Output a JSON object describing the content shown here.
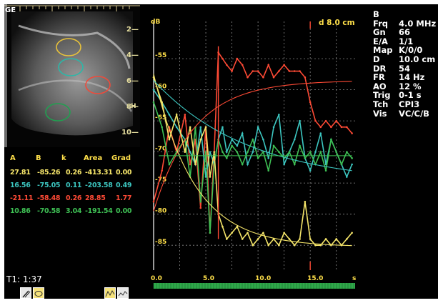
{
  "ultrasound": {
    "corner_label": "GE",
    "depth_ticks": [
      "2",
      "4",
      "6",
      "8",
      "10"
    ],
    "side_marker": "H",
    "roi_colors": [
      "#e8c23a",
      "#2bb7a8",
      "#f04a3a",
      "#20a050"
    ]
  },
  "results_table": {
    "headers": [
      "A",
      "B",
      "k",
      "Area",
      "Grad"
    ],
    "rows": [
      {
        "color": "#f6e66a",
        "A": "27.81",
        "B": "-85.26",
        "k": "0.26",
        "Area": "-413.31",
        "Grad": "0.00"
      },
      {
        "color": "#3cc6c0",
        "A": "16.56",
        "B": "-75.05",
        "k": "0.11",
        "Area": "-203.58",
        "Grad": "0.49"
      },
      {
        "color": "#ff4a35",
        "A": "-21.11",
        "B": "-58.48",
        "k": "0.26",
        "Area": "28.85",
        "Grad": "1.77"
      },
      {
        "color": "#3ec054",
        "A": "10.86",
        "B": "-70.58",
        "k": "3.04",
        "Area": "-191.54",
        "Grad": "0.00"
      }
    ]
  },
  "timer": "T1: 1:37",
  "toolbar": {
    "icons": [
      "pen-edit-icon",
      "ellipse-roi-icon",
      "curve-fit-icon",
      "raw-curve-icon"
    ]
  },
  "info_panel": [
    {
      "label": "B",
      "value": ""
    },
    {
      "label": "Frq",
      "value": "4.0 MHz"
    },
    {
      "label": "Gn",
      "value": "66"
    },
    {
      "label": "E/A",
      "value": "1/1"
    },
    {
      "label": "Map",
      "value": "K/0/0"
    },
    {
      "label": "D",
      "value": "10.0 cm"
    },
    {
      "label": "DR",
      "value": "54"
    },
    {
      "label": "FR",
      "value": "14 Hz"
    },
    {
      "label": "AO",
      "value": "12 %"
    },
    {
      "label": "Trig",
      "value": "0-1 s"
    },
    {
      "label": "Tch",
      "value": "CPI3"
    },
    {
      "label": "Vis",
      "value": "VC/C/B"
    }
  ],
  "chart_data": {
    "type": "line",
    "ylabel": "dB",
    "xlabel": "s",
    "depth_marker": "d 8.0 cm",
    "x_ticks": [
      "0.0",
      "5.0",
      "10.0",
      "15.0"
    ],
    "y_ticks": [
      "-55",
      "-60",
      "-65",
      "-70",
      "-75",
      "-80",
      "-85"
    ],
    "xlim": [
      0,
      19.3
    ],
    "ylim": [
      -89,
      -52
    ],
    "grid": true,
    "series": [
      {
        "color": "#ff4a35",
        "x": [
          0.0,
          0.8,
          1.5,
          2.2,
          3.0,
          3.5,
          4.0,
          4.5,
          5.0,
          5.4,
          5.8,
          6.2,
          6.6,
          7.0,
          7.5,
          8.0,
          8.5,
          9.0,
          9.5,
          10.0,
          10.5,
          11.0,
          11.5,
          12.0,
          12.5,
          13.0,
          13.5,
          14.0,
          14.5,
          15.0,
          15.5,
          16.0,
          16.5,
          17.0,
          17.5,
          18.0,
          18.5,
          19.0
        ],
        "y": [
          -78,
          -73,
          -66,
          -70,
          -64,
          -72,
          -68,
          -79,
          -66,
          -83,
          -70,
          -54,
          -55,
          -56,
          -57,
          -55,
          -56,
          -58,
          -57,
          -57,
          -58,
          -56,
          -58,
          -57,
          -56,
          -57,
          -57,
          -57,
          -58,
          -62,
          -65,
          -66,
          -65,
          -66,
          -65,
          -66,
          -66,
          -67
        ],
        "fit": [
          0,
          0,
          0,
          0,
          0,
          0,
          0,
          0,
          0,
          0,
          0,
          0,
          0,
          0,
          0,
          0,
          0,
          0,
          0,
          0,
          0,
          0,
          0,
          0,
          0,
          0,
          0,
          0,
          0,
          0,
          0,
          0,
          0,
          0,
          0,
          0,
          0,
          0
        ]
      },
      {
        "color": "#3cc6c0",
        "x": [
          0.0,
          0.8,
          1.5,
          2.2,
          3.0,
          3.5,
          4.0,
          4.5,
          5.0,
          5.4,
          5.8,
          6.2,
          6.6,
          7.0,
          7.5,
          8.0,
          8.5,
          9.0,
          9.5,
          10.0,
          10.5,
          11.0,
          11.5,
          12.0,
          12.5,
          13.0,
          13.5,
          14.0,
          14.5,
          15.0,
          15.5,
          16.0,
          16.5,
          17.0,
          17.5,
          18.0,
          18.5,
          19.0
        ],
        "y": [
          -60,
          -62,
          -64,
          -66,
          -68,
          -70,
          -72,
          -66,
          -74,
          -70,
          -72,
          -68,
          -66,
          -70,
          -68,
          -69,
          -67,
          -72,
          -70,
          -66,
          -68,
          -71,
          -66,
          -64,
          -72,
          -70,
          -68,
          -65,
          -71,
          -73,
          -70,
          -67,
          -72,
          -68,
          -70,
          -72,
          -74,
          -72
        ],
        "fit": []
      },
      {
        "color": "#3ec054",
        "x": [
          0.0,
          0.8,
          1.5,
          2.2,
          3.0,
          3.5,
          4.0,
          4.5,
          5.0,
          5.4,
          5.8,
          6.2,
          6.6,
          7.0,
          7.5,
          8.0,
          8.5,
          9.0,
          9.5,
          10.0,
          10.5,
          11.0,
          11.5,
          12.0,
          12.5,
          13.0,
          13.5,
          14.0,
          14.5,
          15.0,
          15.5,
          16.0,
          16.5,
          17.0,
          17.5,
          18.0,
          18.5,
          19.0
        ],
        "y": [
          -62,
          -66,
          -72,
          -70,
          -68,
          -74,
          -66,
          -78,
          -70,
          -83,
          -72,
          -68,
          -70,
          -71,
          -69,
          -70,
          -72,
          -70,
          -68,
          -71,
          -70,
          -73,
          -69,
          -70,
          -71,
          -70,
          -72,
          -69,
          -71,
          -70,
          -72,
          -70,
          -73,
          -68,
          -70,
          -72,
          -70,
          -71
        ],
        "fit": []
      },
      {
        "color": "#f6e66a",
        "x": [
          0.0,
          0.8,
          1.5,
          2.2,
          3.0,
          3.5,
          4.0,
          4.5,
          5.0,
          5.4,
          5.8,
          6.2,
          6.6,
          7.0,
          7.5,
          8.0,
          8.5,
          9.0,
          9.5,
          10.0,
          10.5,
          11.0,
          11.5,
          12.0,
          12.5,
          13.0,
          13.5,
          14.0,
          14.5,
          15.0,
          15.5,
          16.0,
          16.5,
          17.0,
          17.5,
          18.0,
          18.5,
          19.0
        ],
        "y": [
          -58,
          -62,
          -68,
          -64,
          -70,
          -66,
          -72,
          -68,
          -66,
          -74,
          -70,
          -80,
          -82,
          -84,
          -83,
          -82,
          -84,
          -83,
          -85,
          -84,
          -83,
          -85,
          -84,
          -85,
          -83,
          -84,
          -85,
          -84,
          -78,
          -84,
          -85,
          -85,
          -84,
          -85,
          -84,
          -85,
          -84,
          -83
        ],
        "fit": []
      }
    ]
  }
}
